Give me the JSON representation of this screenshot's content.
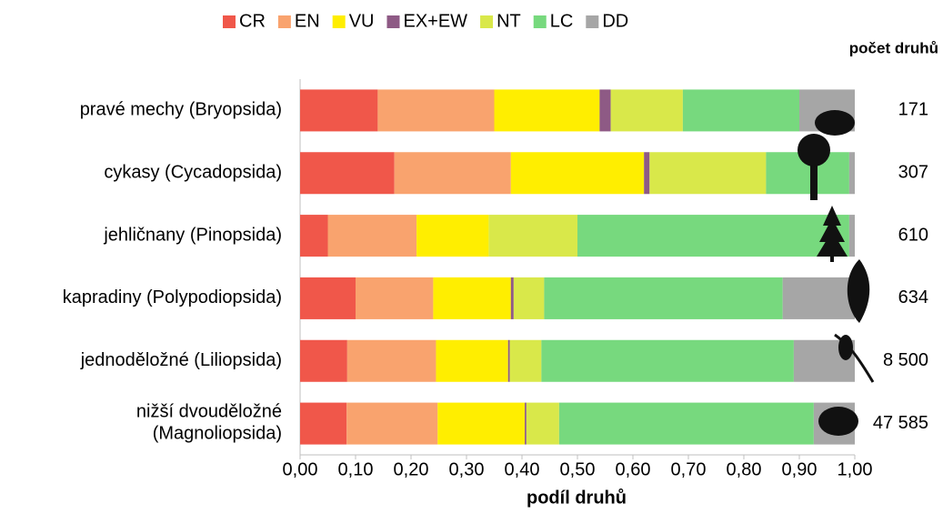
{
  "chart_data": {
    "type": "stacked_barh",
    "xlabel": "podíl druhů",
    "categories": [
      "pravé mechy (Bryopsida)",
      "cykasy (Cycadopsida)",
      "jehličnany (Pinopsida)",
      "kapradiny (Polypodiopsida)",
      "jednoděložné (Liliopsida)",
      "nižší dvouděložné\n(Magnoliopsida)"
    ],
    "series": [
      {
        "name": "CR",
        "color": "#f0574a",
        "values": [
          0.14,
          0.17,
          0.05,
          0.1,
          0.085,
          0.084
        ]
      },
      {
        "name": "EN",
        "color": "#f9a36e",
        "values": [
          0.21,
          0.21,
          0.16,
          0.14,
          0.16,
          0.164
        ]
      },
      {
        "name": "VU",
        "color": "#ffee00",
        "values": [
          0.19,
          0.24,
          0.13,
          0.14,
          0.13,
          0.157
        ]
      },
      {
        "name": "EX+EW",
        "color": "#8e5a85",
        "values": [
          0.02,
          0.01,
          0,
          0.005,
          0.003,
          0.003
        ]
      },
      {
        "name": "NT",
        "color": "#d9e84a",
        "values": [
          0.13,
          0.21,
          0.16,
          0.055,
          0.057,
          0.059
        ]
      },
      {
        "name": "LC",
        "color": "#77d97e",
        "values": [
          0.21,
          0.15,
          0.49,
          0.43,
          0.455,
          0.459
        ]
      },
      {
        "name": "DD",
        "color": "#a6a6a6",
        "values": [
          0.1,
          0.01,
          0.01,
          0.13,
          0.11,
          0.074
        ]
      }
    ],
    "xlim": [
      0,
      1
    ],
    "xticks": [
      {
        "value": 0,
        "label": "0,00"
      },
      {
        "value": 0.1,
        "label": "0,10"
      },
      {
        "value": 0.2,
        "label": "0,20"
      },
      {
        "value": 0.3,
        "label": "0,30"
      },
      {
        "value": 0.4,
        "label": "0,40"
      },
      {
        "value": 0.5,
        "label": "0,50"
      },
      {
        "value": 0.6,
        "label": "0,60"
      },
      {
        "value": 0.7,
        "label": "0,70"
      },
      {
        "value": 0.8,
        "label": "0,80"
      },
      {
        "value": 0.9,
        "label": "0,90"
      },
      {
        "value": 1,
        "label": "1,00"
      }
    ],
    "count_header": "počet druhů",
    "counts": [
      "171",
      "307",
      "610",
      "634",
      "8 500",
      "47 585"
    ],
    "legend": "top",
    "grid": false
  }
}
